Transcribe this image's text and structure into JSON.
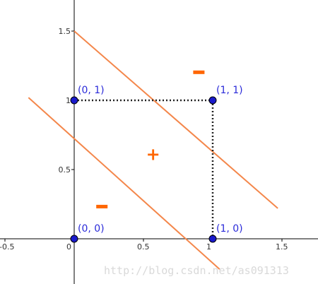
{
  "chart_data": {
    "type": "scatter",
    "title": "",
    "xlabel": "",
    "ylabel": "",
    "xlim": [
      -0.5,
      1.75
    ],
    "ylim": [
      -0.25,
      1.75
    ],
    "x_ticks": [
      {
        "value": -0.5,
        "label": "-0.5"
      },
      {
        "value": 0,
        "label": "0"
      },
      {
        "value": 0.5,
        "label": "0.5"
      },
      {
        "value": 1,
        "label": "1"
      },
      {
        "value": 1.5,
        "label": "1.5"
      }
    ],
    "y_ticks": [
      {
        "value": 0.5,
        "label": "0.5"
      },
      {
        "value": 1,
        "label": "1"
      },
      {
        "value": 1.5,
        "label": "1.5"
      }
    ],
    "points": [
      {
        "x": 0,
        "y": 0,
        "label": "(0, 0)"
      },
      {
        "x": 0,
        "y": 1,
        "label": "(0, 1)"
      },
      {
        "x": 1,
        "y": 1,
        "label": "(1, 1)"
      },
      {
        "x": 1,
        "y": 0,
        "label": "(1, 0)"
      }
    ],
    "lines": [
      {
        "name": "upper-boundary",
        "from": [
          0,
          1.5
        ],
        "to": [
          1.47,
          0.22
        ]
      },
      {
        "name": "lower-boundary",
        "from": [
          -0.33,
          1.02
        ],
        "to": [
          1.05,
          -0.22
        ]
      }
    ],
    "dotted_segments": [
      {
        "from": [
          0,
          1
        ],
        "to": [
          1,
          1
        ]
      },
      {
        "from": [
          1,
          1
        ],
        "to": [
          1,
          0
        ]
      }
    ],
    "region_signs": [
      {
        "text": "-",
        "x": 0.9,
        "y": 1.2
      },
      {
        "text": "+",
        "x": 0.57,
        "y": 0.61
      },
      {
        "text": "-",
        "x": 0.2,
        "y": 0.23
      }
    ],
    "colors": {
      "boundary": "#f4874b",
      "point_fill": "#1a1acc",
      "label": "#2b2bd9",
      "sign": "#ff6600"
    }
  },
  "watermark": "http://blog.csdn.net/as091313"
}
